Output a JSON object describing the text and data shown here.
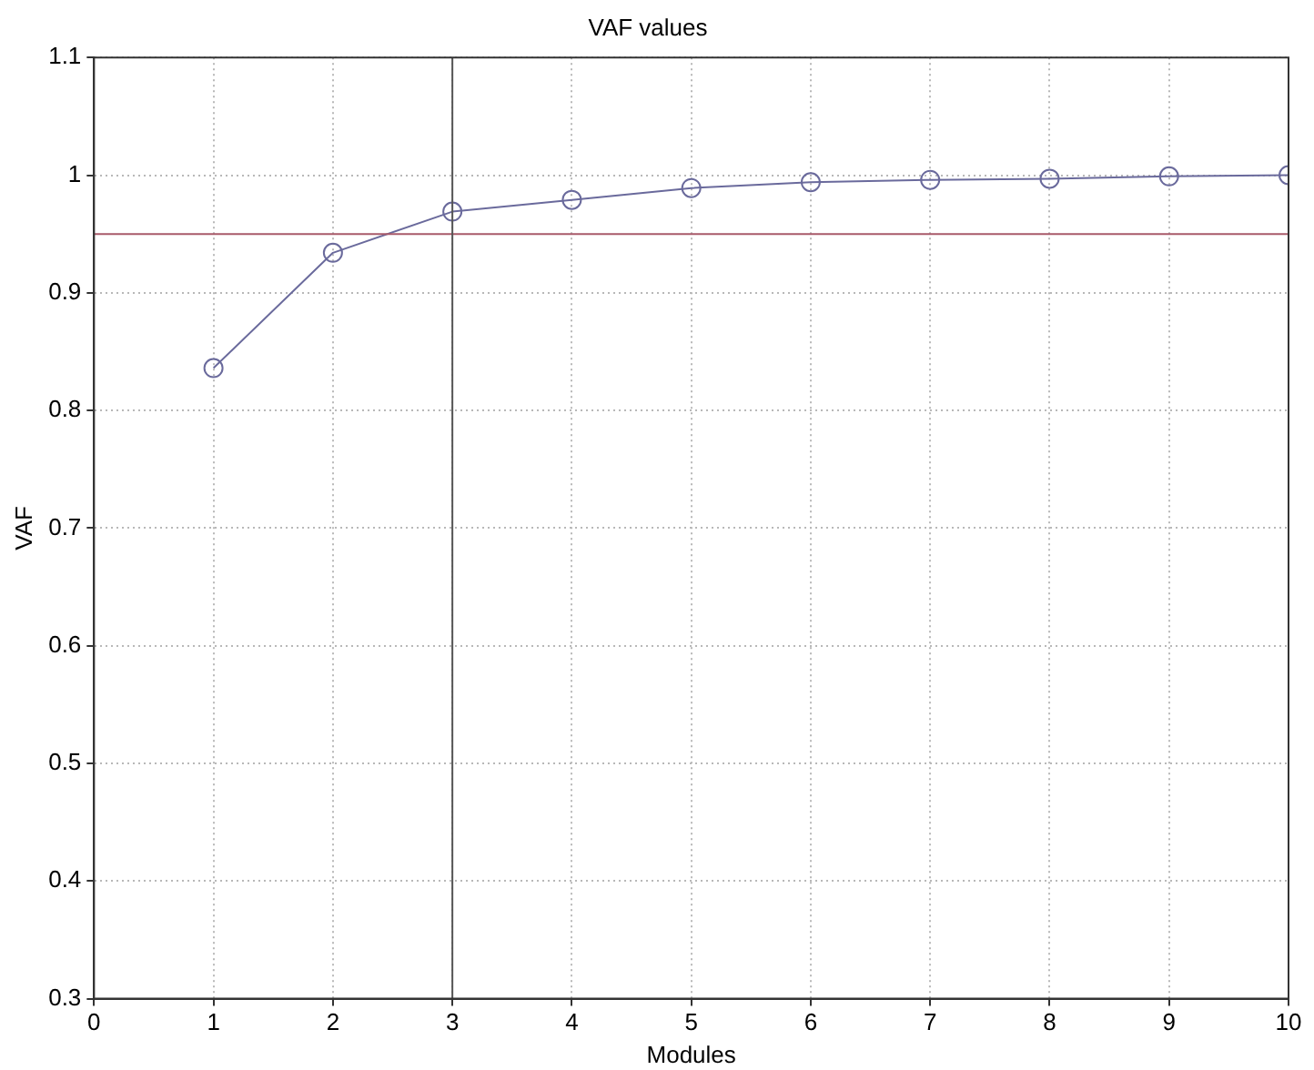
{
  "chart_data": {
    "type": "line",
    "title": "VAF values",
    "xlabel": "Modules",
    "ylabel": "VAF",
    "x": [
      1,
      2,
      3,
      4,
      5,
      6,
      7,
      8,
      9,
      10
    ],
    "series": [
      {
        "color": "#6a6a9c",
        "values": [
          0.836,
          0.934,
          0.969,
          0.979,
          0.989,
          0.994,
          0.996,
          0.997,
          0.999,
          1.0
        ]
      }
    ],
    "xlim": [
      0,
      10
    ],
    "xticks": [
      0,
      1,
      2,
      3,
      4,
      5,
      6,
      7,
      8,
      9,
      10
    ],
    "ylim": [
      0.3,
      1.1
    ],
    "yticks": [
      0.3,
      0.4,
      0.5,
      0.6,
      0.7,
      0.8,
      0.9,
      1,
      1.1
    ],
    "ref_lines": [
      {
        "axis": "y",
        "value": 0.95,
        "color": "#a85a6a"
      },
      {
        "axis": "x",
        "value": 3,
        "color": "#555555"
      }
    ],
    "grid": true,
    "marker": "circle",
    "line_style": "solid",
    "legend": false
  }
}
